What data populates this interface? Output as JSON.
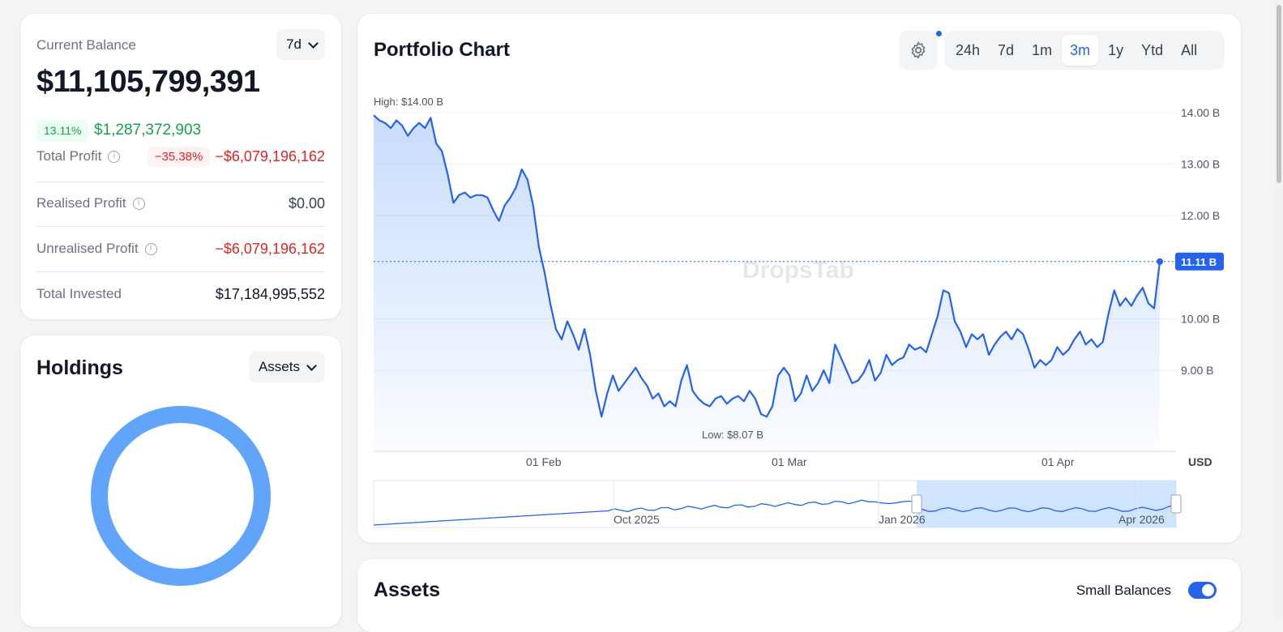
{
  "balance": {
    "label": "Current Balance",
    "period": "7d",
    "amount": "$11,105,799,391",
    "change_pct": "13.11%",
    "change_value": "$1,287,372,903",
    "total_profit": {
      "label": "Total Profit",
      "pct": "−35.38%",
      "value": "−$6,079,196,162"
    },
    "realised_profit": {
      "label": "Realised Profit",
      "value": "$0.00"
    },
    "unrealised_profit": {
      "label": "Unrealised Profit",
      "value": "−$6,079,196,162"
    },
    "total_invested": {
      "label": "Total Invested",
      "value": "$17,184,995,552"
    }
  },
  "holdings": {
    "title": "Holdings",
    "dropdown": "Assets",
    "donut_color": "#60a5fa"
  },
  "portfolio_chart": {
    "title": "Portfolio Chart",
    "ranges": [
      "24h",
      "7d",
      "1m",
      "3m",
      "1y",
      "Ytd",
      "All"
    ],
    "active_range": "3m",
    "watermark": "DropsTab",
    "accent": "#2563eb"
  },
  "chart_data": {
    "type": "area",
    "high_label": "High: $14.00 B",
    "low_label": "Low: $8.07 B",
    "current_label": "11.11 B",
    "y_ticks": [
      "14.00 B",
      "13.00 B",
      "12.00 B",
      "10.00 B",
      "9.00 B"
    ],
    "y_tick_values": [
      14,
      13,
      12,
      10,
      9
    ],
    "x_ticks": [
      "01 Feb",
      "01 Mar",
      "01 Apr"
    ],
    "currency": "USD",
    "ylim": [
      8.0,
      14.0
    ],
    "values": [
      13.95,
      13.85,
      13.8,
      13.7,
      13.85,
      13.75,
      13.55,
      13.7,
      13.8,
      13.7,
      13.9,
      13.4,
      13.25,
      12.8,
      12.25,
      12.4,
      12.45,
      12.35,
      12.4,
      12.4,
      12.35,
      12.1,
      11.9,
      12.2,
      12.35,
      12.55,
      12.9,
      12.7,
      12.2,
      11.4,
      10.9,
      10.3,
      9.8,
      9.6,
      9.95,
      9.7,
      9.4,
      9.8,
      9.3,
      8.6,
      8.1,
      8.55,
      8.9,
      8.6,
      8.75,
      8.9,
      9.05,
      8.85,
      8.7,
      8.45,
      8.55,
      8.3,
      8.4,
      8.3,
      8.8,
      9.1,
      8.6,
      8.45,
      8.35,
      8.3,
      8.45,
      8.5,
      8.35,
      8.45,
      8.5,
      8.4,
      8.6,
      8.45,
      8.15,
      8.1,
      8.3,
      8.9,
      9.05,
      8.9,
      8.4,
      8.55,
      8.9,
      8.6,
      8.75,
      9.0,
      8.75,
      9.5,
      9.25,
      9.0,
      8.75,
      8.8,
      8.95,
      9.2,
      8.8,
      8.95,
      9.3,
      9.1,
      9.2,
      9.25,
      9.5,
      9.4,
      9.45,
      9.35,
      9.7,
      10.05,
      10.55,
      10.5,
      9.95,
      9.75,
      9.45,
      9.7,
      9.6,
      9.7,
      9.3,
      9.5,
      9.65,
      9.75,
      9.6,
      9.8,
      9.7,
      9.4,
      9.05,
      9.2,
      9.1,
      9.2,
      9.45,
      9.3,
      9.4,
      9.6,
      9.75,
      9.5,
      9.6,
      9.45,
      9.55,
      10.1,
      10.55,
      10.25,
      10.4,
      10.25,
      10.45,
      10.6,
      10.3,
      10.2,
      11.11
    ],
    "navigator": {
      "x_ticks": [
        "Oct 2025",
        "Jan 2026",
        "Apr 2026"
      ]
    }
  },
  "assets": {
    "title": "Assets",
    "small_balances_label": "Small Balances",
    "small_balances_on": true
  }
}
